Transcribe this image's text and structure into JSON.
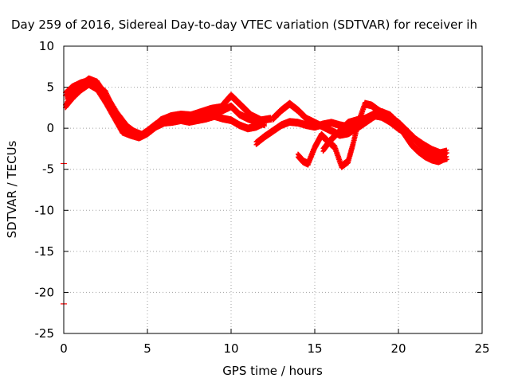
{
  "chart_data": {
    "type": "scatter",
    "title": "Day 259 of 2016, Sidereal Day-to-day VTEC variation (SDTVAR) for receiver ih",
    "xlabel": "GPS time / hours",
    "ylabel": "SDTVAR / TECUs",
    "xlim": [
      0,
      25
    ],
    "ylim": [
      -25,
      10
    ],
    "xticks": [
      0,
      5,
      10,
      15,
      20,
      25
    ],
    "yticks": [
      -25,
      -20,
      -15,
      -10,
      -5,
      0,
      5,
      10
    ],
    "grid": true,
    "marker": "plus",
    "color": "#ff0000",
    "series": [
      {
        "x": [
          0.1,
          0.5,
          1.0,
          1.5,
          2.0,
          2.5,
          3.0,
          3.5,
          4.0,
          4.5,
          5.0,
          5.5,
          6.0,
          6.5,
          7.0,
          7.5,
          8.0,
          8.5,
          9.0,
          9.5,
          10.0,
          10.5,
          11.0,
          11.5,
          12.0
        ],
        "y": [
          4.0,
          4.8,
          5.3,
          5.6,
          5.0,
          4.2,
          2.0,
          -0.2,
          -0.8,
          -1.2,
          -0.5,
          0.3,
          0.8,
          1.0,
          1.1,
          1.0,
          1.2,
          1.5,
          1.8,
          2.0,
          2.5,
          1.5,
          1.0,
          0.6,
          0.3
        ]
      },
      {
        "x": [
          0.1,
          0.5,
          1.0,
          1.5,
          2.0,
          2.5,
          3.0,
          3.5,
          4.0,
          4.5,
          5.0,
          5.5,
          6.0,
          6.5,
          7.0,
          7.5,
          8.0,
          8.5,
          9.0,
          9.5,
          10.0,
          10.5,
          11.0,
          11.5,
          12.0
        ],
        "y": [
          2.5,
          3.5,
          4.5,
          5.2,
          4.6,
          3.0,
          1.2,
          -0.6,
          -1.0,
          -1.3,
          -0.8,
          0.0,
          0.5,
          0.6,
          0.8,
          0.6,
          0.8,
          1.0,
          1.3,
          1.0,
          0.8,
          0.2,
          -0.2,
          0.0,
          0.5
        ]
      },
      {
        "x": [
          0.2,
          0.6,
          1.0,
          1.5,
          2.0,
          2.6,
          3.2,
          3.8,
          4.2,
          4.7,
          5.2,
          5.8,
          6.4,
          7.0,
          7.6,
          8.2,
          8.8,
          9.4,
          10.0,
          10.6,
          11.2,
          11.8,
          12.4
        ],
        "y": [
          3.2,
          4.2,
          5.0,
          5.8,
          5.4,
          3.6,
          1.6,
          0.0,
          -0.6,
          -1.0,
          -0.3,
          0.8,
          1.3,
          1.5,
          1.4,
          1.8,
          2.2,
          2.4,
          3.8,
          2.6,
          1.4,
          0.8,
          1.0
        ]
      },
      {
        "x": [
          11.5,
          12.0,
          12.5,
          13.0,
          13.5,
          14.0,
          14.5,
          15.0,
          15.5,
          16.0,
          16.5,
          17.0,
          17.5,
          18.0,
          18.5,
          19.0,
          19.5,
          20.0,
          20.5,
          21.0,
          21.5,
          22.0,
          22.5,
          22.9
        ],
        "y": [
          -2.0,
          -1.2,
          -0.5,
          0.2,
          0.6,
          0.5,
          0.2,
          0.0,
          0.3,
          0.5,
          0.2,
          0.0,
          0.4,
          1.0,
          1.4,
          1.2,
          0.6,
          -0.2,
          -0.8,
          -1.5,
          -2.2,
          -2.8,
          -3.2,
          -3.0
        ]
      },
      {
        "x": [
          12.5,
          13.0,
          13.5,
          14.0,
          14.5,
          15.0,
          15.5,
          16.0,
          16.5,
          17.0,
          17.5,
          18.0,
          18.5,
          19.0,
          19.5,
          20.0,
          20.5,
          21.0,
          21.5,
          22.0,
          22.5,
          22.9
        ],
        "y": [
          1.0,
          2.0,
          2.8,
          2.0,
          1.0,
          0.5,
          0.0,
          -0.5,
          -1.0,
          -0.8,
          -0.2,
          0.5,
          1.2,
          1.8,
          1.4,
          0.4,
          -0.5,
          -1.6,
          -2.6,
          -3.5,
          -4.0,
          -3.8
        ]
      },
      {
        "x": [
          14.0,
          14.3,
          14.6,
          15.0,
          15.4,
          15.8,
          16.2,
          16.6,
          17.0,
          17.3,
          17.6,
          18.0,
          18.4,
          18.8,
          19.2,
          19.6,
          20.0,
          20.4,
          20.8,
          21.2,
          21.6,
          22.0,
          22.4,
          22.8
        ],
        "y": [
          -3.5,
          -4.2,
          -4.5,
          -2.5,
          -1.0,
          -1.8,
          -2.5,
          -4.8,
          -4.2,
          -2.0,
          0.5,
          2.8,
          2.6,
          2.0,
          1.5,
          1.0,
          0.2,
          -1.0,
          -2.2,
          -3.0,
          -3.6,
          -4.0,
          -4.2,
          -3.8
        ]
      },
      {
        "x": [
          15.5,
          16.0,
          16.5,
          17.0,
          17.5,
          18.0,
          18.5,
          19.0,
          19.5,
          20.0,
          20.5,
          21.0
        ],
        "y": [
          -2.8,
          -1.5,
          -0.5,
          0.5,
          0.8,
          1.0,
          1.5,
          1.8,
          1.2,
          0.5,
          -0.5,
          -1.5
        ]
      }
    ],
    "outliers": [
      {
        "x": 0.0,
        "y": -4.3
      },
      {
        "x": 0.0,
        "y": -21.4
      }
    ]
  }
}
